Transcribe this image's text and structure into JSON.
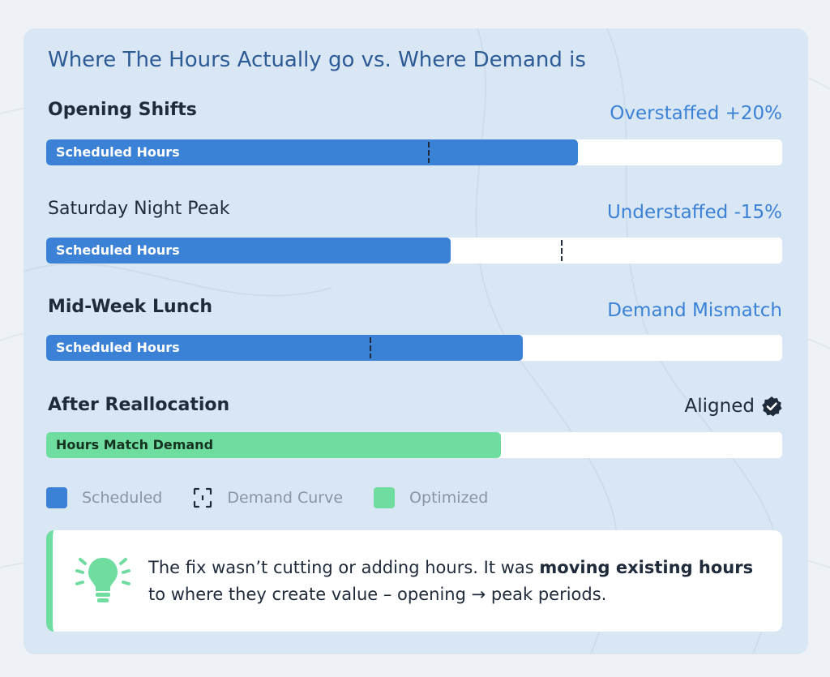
{
  "colors": {
    "scheduled": "#3b82d6",
    "optimized": "#6fdca0",
    "title": "#2d5b96",
    "status": "#3b82d6",
    "dark": "#1f2a3a",
    "card": "#d9e6f4"
  },
  "chart_data": {
    "type": "bar",
    "title": "Where The Hours Actually go vs. Where Demand is",
    "scale_max": 100,
    "rows": [
      {
        "label": "Opening Shifts",
        "status": "Overstaffed +20%",
        "bar_label": "Scheduled Hours",
        "series": "scheduled",
        "value": 72.2,
        "demand": 52
      },
      {
        "label": "Saturday Night Peak",
        "status": "Understaffed -15%",
        "bar_label": "Scheduled Hours",
        "series": "scheduled",
        "value": 55.0,
        "demand": 70
      },
      {
        "label": "Mid-Week Lunch",
        "status": "Demand Mismatch",
        "bar_label": "Scheduled Hours",
        "series": "scheduled",
        "value": 64.8,
        "demand": 44
      },
      {
        "label": "After Reallocation",
        "status": "Aligned",
        "status_icon": "check-badge-icon",
        "bar_label": "Hours Match Demand",
        "series": "optimized",
        "value": 61.8
      }
    ],
    "legend": [
      {
        "label": "Scheduled",
        "swatch": "solid-blue"
      },
      {
        "label": "Demand Curve",
        "swatch": "dashed-outline"
      },
      {
        "label": "Optimized",
        "swatch": "solid-green"
      }
    ]
  },
  "note": {
    "icon": "lightbulb-icon",
    "text_before": "The fix wasn’t cutting or adding hours. It was ",
    "text_bold": "moving existing hours",
    "text_after": " to where they create value – opening → peak periods."
  }
}
